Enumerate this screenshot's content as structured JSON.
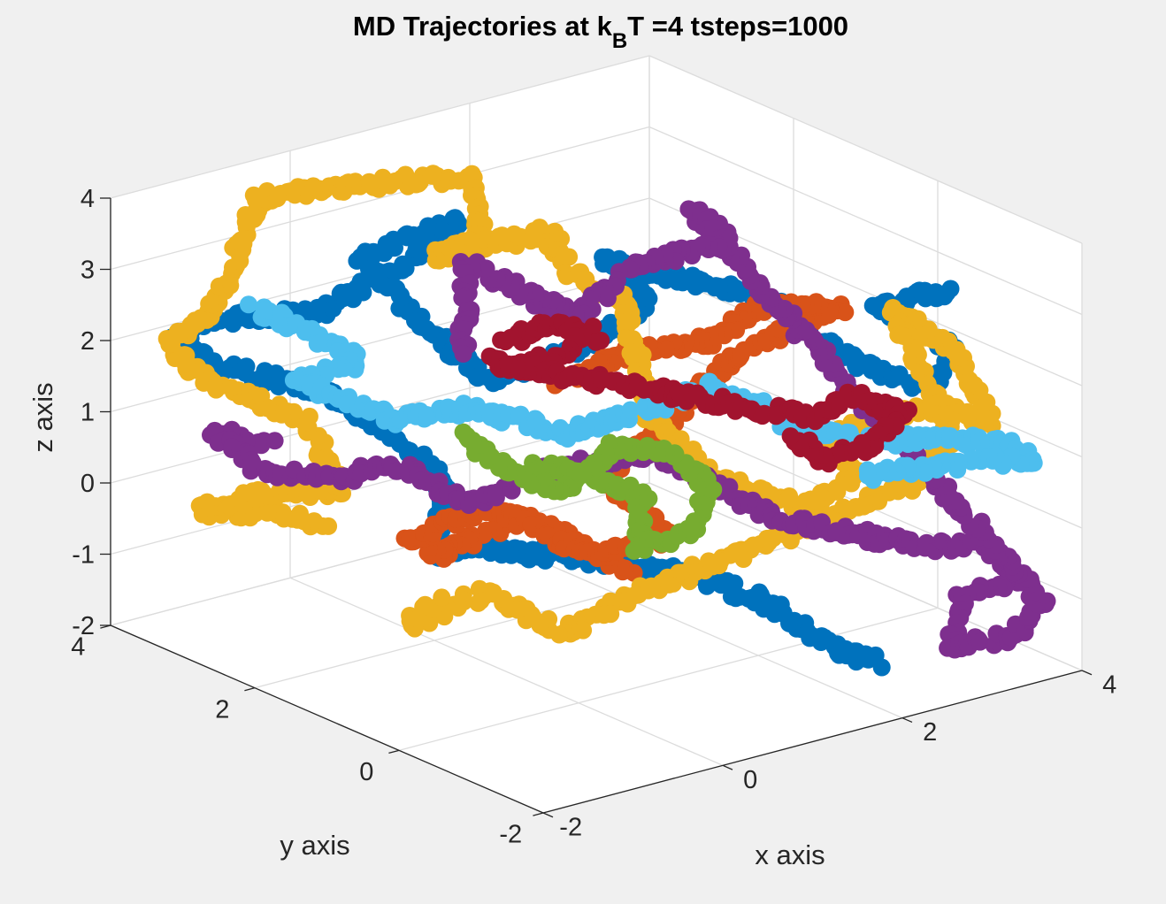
{
  "chart_data": {
    "type": "scatter",
    "projection": "3d",
    "title": {
      "prefix": "MD Trajectories at k",
      "subscript": "B",
      "suffix": "T =4 tsteps=1000"
    },
    "xlabel": "x axis",
    "ylabel": "y axis",
    "zlabel": "z axis",
    "xlim": [
      -2,
      4
    ],
    "ylim": [
      -2,
      4
    ],
    "zlim": [
      -2,
      4
    ],
    "xticks": [
      "-2",
      "0",
      "2",
      "4"
    ],
    "yticks": [
      "-2",
      "0",
      "2",
      "4"
    ],
    "zticks": [
      "-2",
      "-1",
      "0",
      "1",
      "2",
      "3",
      "4"
    ],
    "grid": true,
    "box": false,
    "marker": "filled-circle",
    "series": [
      {
        "color": "#0072BD",
        "points": [
          [
            2.6,
            -0.9,
            -1.9
          ],
          [
            2.2,
            -0.6,
            -1.6
          ],
          [
            2.0,
            -0.2,
            -1.2
          ],
          [
            1.5,
            0.2,
            -0.8
          ],
          [
            1.0,
            0.5,
            -0.6
          ],
          [
            0.6,
            0.8,
            -0.5
          ],
          [
            0.2,
            1.0,
            -0.4
          ],
          [
            -0.1,
            1.2,
            -0.3
          ],
          [
            -0.3,
            1.6,
            -0.5
          ],
          [
            0.1,
            2.0,
            0.2
          ],
          [
            -0.3,
            2.2,
            0.9
          ],
          [
            -0.8,
            2.6,
            1.5
          ],
          [
            -1.4,
            3.2,
            1.8
          ],
          [
            -1.8,
            3.4,
            2.2
          ],
          [
            -1.4,
            3.1,
            2.5
          ],
          [
            -0.8,
            2.6,
            2.6
          ],
          [
            -0.1,
            2.0,
            3.5
          ],
          [
            0.2,
            1.9,
            3.9
          ],
          [
            -0.4,
            2.5,
            3.3
          ],
          [
            -0.2,
            2.3,
            2.8
          ],
          [
            0.3,
            1.7,
            1.7
          ],
          [
            0.9,
            1.3,
            2.0
          ],
          [
            1.5,
            0.9,
            2.7
          ],
          [
            1.3,
            1.3,
            3.2
          ],
          [
            2.2,
            0.2,
            2.9
          ],
          [
            2.8,
            -0.2,
            2.0
          ],
          [
            3.4,
            -0.7,
            1.6
          ],
          [
            3.7,
            -0.6,
            1.9
          ],
          [
            3.4,
            -0.9,
            2.3
          ],
          [
            2.9,
            -0.5,
            2.8
          ],
          [
            3.5,
            -0.8,
            3.0
          ]
        ]
      },
      {
        "color": "#D95319",
        "points": [
          [
            0.8,
            0.3,
            -0.6
          ],
          [
            0.4,
            0.6,
            -0.1
          ],
          [
            0.1,
            0.9,
            0.2
          ],
          [
            -0.4,
            1.4,
            -0.4
          ],
          [
            -0.6,
            1.6,
            -0.2
          ],
          [
            -0.1,
            1.1,
            0.3
          ],
          [
            0.5,
            0.5,
            -0.3
          ],
          [
            1.0,
            0.0,
            0.0
          ],
          [
            0.6,
            0.4,
            0.8
          ],
          [
            1.2,
            0.2,
            1.5
          ],
          [
            1.6,
            0.0,
            2.2
          ],
          [
            2.3,
            -0.1,
            2.6
          ],
          [
            2.7,
            -0.3,
            2.8
          ],
          [
            2.2,
            0.3,
            2.7
          ],
          [
            1.9,
            0.4,
            2.3
          ],
          [
            1.3,
            0.9,
            2.1
          ],
          [
            0.7,
            1.2,
            1.7
          ]
        ]
      },
      {
        "color": "#EDB120",
        "points": [
          [
            -0.6,
            2.8,
            -0.5
          ],
          [
            -1.0,
            3.0,
            -0.3
          ],
          [
            -1.5,
            3.4,
            -0.3
          ],
          [
            -1.1,
            3.0,
            0.0
          ],
          [
            -0.6,
            2.5,
            0.1
          ],
          [
            -0.8,
            2.8,
            1.0
          ],
          [
            -1.4,
            3.4,
            1.5
          ],
          [
            -1.8,
            3.5,
            2.1
          ],
          [
            -1.5,
            3.2,
            2.6
          ],
          [
            -1.0,
            3.2,
            4.0
          ],
          [
            -0.6,
            2.8,
            4.2
          ],
          [
            0.4,
            2.0,
            4.4
          ],
          [
            0.3,
            1.7,
            3.7
          ],
          [
            0.0,
            2.0,
            3.4
          ],
          [
            0.7,
            1.3,
            3.8
          ],
          [
            0.9,
            1.2,
            3.2
          ],
          [
            1.3,
            1.0,
            2.8
          ],
          [
            1.2,
            0.5,
            1.4
          ],
          [
            1.8,
            0.3,
            0.4
          ],
          [
            2.3,
            -0.3,
            0.1
          ],
          [
            2.6,
            -0.6,
            0.6
          ],
          [
            2.5,
            -0.3,
            1.1
          ],
          [
            3.2,
            -0.9,
            1.5
          ],
          [
            3.7,
            -1.1,
            1.2
          ],
          [
            3.5,
            -0.9,
            2.1
          ],
          [
            3.1,
            -0.5,
            2.7
          ],
          [
            3.6,
            -0.7,
            0.9
          ],
          [
            3.1,
            -0.9,
            0.5
          ],
          [
            0.9,
            0.3,
            -0.9
          ],
          [
            0.3,
            0.6,
            -1.4
          ],
          [
            -0.2,
            1.0,
            -0.8
          ],
          [
            -0.6,
            1.6,
            -1.4
          ],
          [
            -0.4,
            1.4,
            -1.0
          ]
        ]
      },
      {
        "color": "#7E2F8E",
        "points": [
          [
            -1.2,
            2.8,
            0.8
          ],
          [
            -1.5,
            3.2,
            0.9
          ],
          [
            -1.1,
            3.0,
            0.3
          ],
          [
            -0.6,
            2.6,
            0.2
          ],
          [
            -0.3,
            2.2,
            0.5
          ],
          [
            0.1,
            1.6,
            0.0
          ],
          [
            0.5,
            1.4,
            0.4
          ],
          [
            0.9,
            1.1,
            0.6
          ],
          [
            1.4,
            0.7,
            0.7
          ],
          [
            2.2,
            -0.1,
            -0.1
          ],
          [
            3.0,
            -0.9,
            -0.4
          ],
          [
            3.5,
            -1.3,
            -0.4
          ],
          [
            3.8,
            -1.4,
            -0.9
          ],
          [
            3.3,
            -1.2,
            -1.1
          ],
          [
            3.1,
            -1.3,
            -1.7
          ],
          [
            3.7,
            -1.4,
            -1.7
          ],
          [
            3.9,
            -1.6,
            -1.2
          ],
          [
            2.3,
            1.3,
            3.6
          ],
          [
            2.5,
            1.0,
            3.2
          ],
          [
            1.9,
            1.5,
            2.9
          ],
          [
            1.2,
            1.5,
            2.4
          ],
          [
            0.8,
            1.4,
            2.7
          ],
          [
            0.2,
            1.8,
            3.3
          ],
          [
            0.0,
            1.6,
            2.2
          ]
        ]
      },
      {
        "color": "#77AC30",
        "points": [
          [
            0.5,
            1.3,
            0.6
          ],
          [
            0.9,
            1.0,
            0.5
          ],
          [
            1.2,
            0.6,
            0.2
          ],
          [
            1.0,
            0.4,
            -0.3
          ],
          [
            1.4,
            0.2,
            -0.2
          ],
          [
            1.6,
            0.2,
            0.4
          ],
          [
            1.4,
            0.5,
            0.9
          ],
          [
            1.0,
            0.8,
            0.9
          ],
          [
            0.6,
            1.0,
            0.3
          ],
          [
            0.2,
            1.4,
            0.7
          ],
          [
            0.0,
            1.6,
            1.1
          ]
        ]
      },
      {
        "color": "#4DBEEE",
        "points": [
          [
            -1.2,
            3.0,
            2.6
          ],
          [
            -0.8,
            2.8,
            2.3
          ],
          [
            -0.5,
            2.4,
            1.9
          ],
          [
            -0.9,
            2.8,
            1.6
          ],
          [
            -0.4,
            2.1,
            1.2
          ],
          [
            0.1,
            1.6,
            1.4
          ],
          [
            0.8,
            1.2,
            1.0
          ],
          [
            1.4,
            0.8,
            1.3
          ],
          [
            1.9,
            0.5,
            1.6
          ],
          [
            2.3,
            -0.1,
            1.2
          ],
          [
            2.8,
            -0.6,
            1.0
          ],
          [
            3.4,
            -0.9,
            1.0
          ],
          [
            3.9,
            -1.1,
            0.8
          ],
          [
            4.1,
            -1.2,
            0.6
          ],
          [
            3.5,
            -0.8,
            0.5
          ],
          [
            2.9,
            -0.4,
            0.4
          ]
        ]
      },
      {
        "color": "#A2142F",
        "points": [
          [
            0.4,
            1.5,
            2.3
          ],
          [
            0.7,
            1.2,
            2.6
          ],
          [
            1.0,
            1.0,
            2.4
          ],
          [
            0.6,
            1.4,
            1.9
          ],
          [
            0.3,
            1.6,
            2.0
          ],
          [
            2.3,
            -0.4,
            1.4
          ],
          [
            2.6,
            -0.6,
            1.7
          ],
          [
            3.0,
            -0.8,
            1.4
          ],
          [
            2.8,
            -0.6,
            1.0
          ],
          [
            2.4,
            -0.5,
            0.8
          ],
          [
            2.2,
            -0.2,
            1.1
          ]
        ]
      }
    ]
  }
}
